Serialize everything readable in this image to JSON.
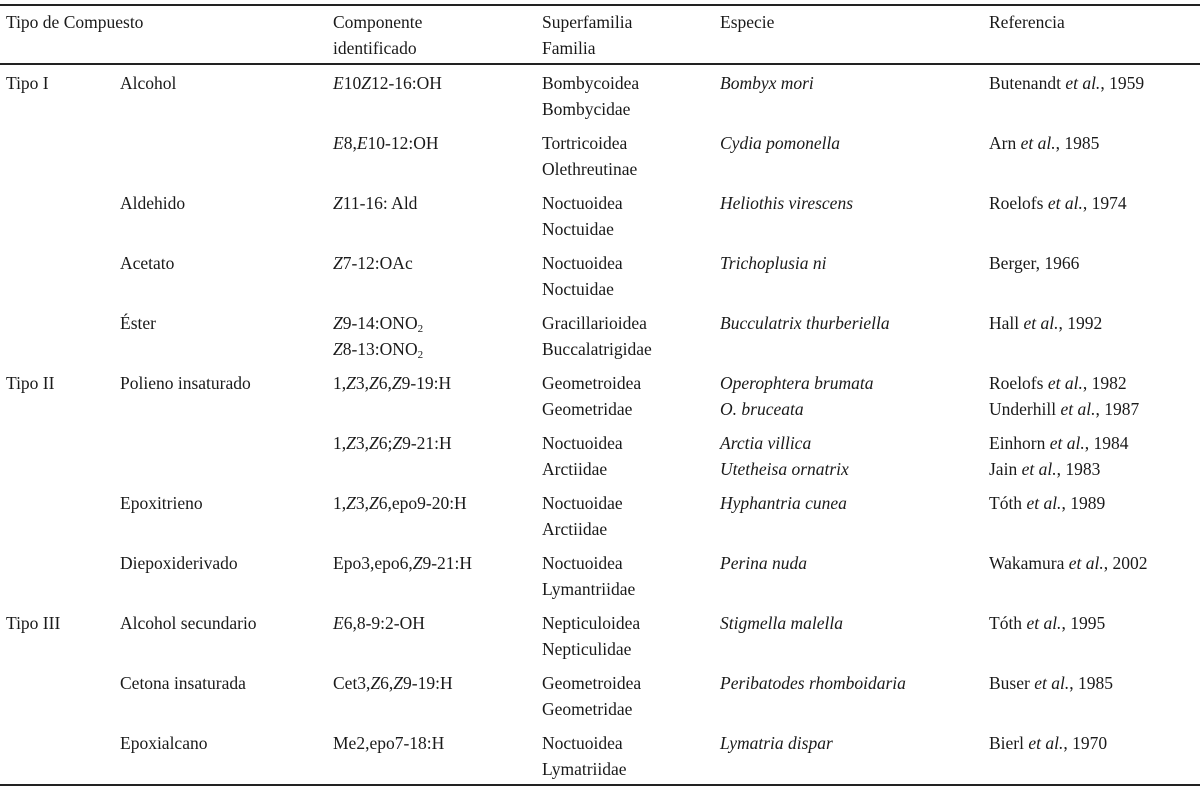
{
  "header": {
    "tipo": "Tipo de Compuesto",
    "componente": [
      "Componente",
      "identificado"
    ],
    "superfamilia": [
      "Superfamilia",
      "Familia"
    ],
    "especie": "Especie",
    "referencia": "Referencia"
  },
  "rows": [
    {
      "tipo": "Tipo I",
      "clase": "Alcohol",
      "componente": [
        [
          {
            "i": "E"
          },
          "10",
          {
            "i": "Z"
          },
          "12-16:OH"
        ]
      ],
      "familia": [
        "Bombycoidea",
        "Bombycidae"
      ],
      "especie": [
        "Bombyx mori"
      ],
      "referencia": [
        [
          "Butenandt ",
          {
            "i": "et al."
          },
          ", 1959"
        ]
      ]
    },
    {
      "tipo": "",
      "clase": "",
      "componente": [
        [
          {
            "i": "E"
          },
          "8,",
          {
            "i": "E"
          },
          "10-12:OH"
        ]
      ],
      "familia": [
        "Tortricoidea",
        "Olethreutinae"
      ],
      "especie": [
        "Cydia pomonella"
      ],
      "referencia": [
        [
          "Arn ",
          {
            "i": "et al."
          },
          ", 1985"
        ]
      ]
    },
    {
      "tipo": "",
      "clase": "Aldehido",
      "componente": [
        [
          {
            "i": "Z"
          },
          "11-16: Ald"
        ]
      ],
      "familia": [
        "Noctuoidea",
        "Noctuidae"
      ],
      "especie": [
        "Heliothis virescens"
      ],
      "referencia": [
        [
          "Roelofs ",
          {
            "i": "et al."
          },
          ", 1974"
        ]
      ]
    },
    {
      "tipo": "",
      "clase": "Acetato",
      "componente": [
        [
          {
            "i": "Z"
          },
          "7-12:OAc"
        ]
      ],
      "familia": [
        "Noctuoidea",
        "Noctuidae"
      ],
      "especie": [
        "Trichoplusia ni"
      ],
      "referencia": [
        [
          "Berger, 1966"
        ]
      ]
    },
    {
      "tipo": "",
      "clase": "Éster",
      "componente": [
        [
          {
            "i": "Z"
          },
          "9-14:ONO",
          {
            "sub": "2"
          }
        ],
        [
          {
            "i": "Z"
          },
          "8-13:ONO",
          {
            "sub": "2"
          }
        ]
      ],
      "familia": [
        "Gracillarioidea",
        "Buccalatrigidae"
      ],
      "especie": [
        "Bucculatrix thurberiella"
      ],
      "referencia": [
        [
          "Hall ",
          {
            "i": "et al."
          },
          ", 1992"
        ]
      ]
    },
    {
      "tipo": "Tipo II",
      "clase": "Polieno insaturado",
      "componente": [
        [
          "1,",
          {
            "i": "Z"
          },
          "3,",
          {
            "i": "Z"
          },
          "6,",
          {
            "i": "Z"
          },
          "9-19:H"
        ]
      ],
      "familia": [
        "Geometroidea",
        "Geometridae"
      ],
      "especie": [
        "Operophtera brumata",
        "O. bruceata"
      ],
      "referencia": [
        [
          "Roelofs ",
          {
            "i": "et al."
          },
          ", 1982"
        ],
        [
          "Underhill ",
          {
            "i": "et al."
          },
          ", 1987"
        ]
      ]
    },
    {
      "tipo": "",
      "clase": "",
      "componente": [
        [
          "1,",
          {
            "i": "Z"
          },
          "3,",
          {
            "i": "Z"
          },
          "6;",
          {
            "i": "Z"
          },
          "9-21:H"
        ]
      ],
      "familia": [
        "Noctuoidea",
        "Arctiidae"
      ],
      "especie": [
        "Arctia villica",
        "Utetheisa ornatrix"
      ],
      "referencia": [
        [
          "Einhorn ",
          {
            "i": "et al."
          },
          ", 1984"
        ],
        [
          "Jain ",
          {
            "i": "et al."
          },
          ", 1983"
        ]
      ]
    },
    {
      "tipo": "",
      "clase": "Epoxitrieno",
      "componente": [
        [
          "1,",
          {
            "i": "Z"
          },
          "3,",
          {
            "i": "Z"
          },
          "6,epo9-20:H"
        ]
      ],
      "familia": [
        "Noctuoidae",
        "Arctiidae"
      ],
      "especie": [
        "Hyphantria cunea"
      ],
      "referencia": [
        [
          "Tóth ",
          {
            "i": "et al."
          },
          ", 1989"
        ]
      ]
    },
    {
      "tipo": "",
      "clase": "Diepoxiderivado",
      "componente": [
        [
          "Epo3,epo6,",
          {
            "i": "Z"
          },
          "9-21:H"
        ]
      ],
      "familia": [
        "Noctuoidea",
        "Lymantriidae"
      ],
      "especie": [
        "Perina nuda"
      ],
      "referencia": [
        [
          "Wakamura ",
          {
            "i": "et al."
          },
          ", 2002"
        ]
      ]
    },
    {
      "tipo": "Tipo III",
      "clase": "Alcohol secundario",
      "componente": [
        [
          {
            "i": "E"
          },
          "6,8-9:2-OH"
        ]
      ],
      "familia": [
        "Nepticuloidea",
        "Nepticulidae"
      ],
      "especie": [
        "Stigmella malella"
      ],
      "referencia": [
        [
          "Tóth ",
          {
            "i": "et al."
          },
          ", 1995"
        ]
      ]
    },
    {
      "tipo": "",
      "clase": "Cetona insaturada",
      "componente": [
        [
          "Cet3,",
          {
            "i": "Z"
          },
          "6,",
          {
            "i": "Z"
          },
          "9-19:H"
        ]
      ],
      "familia": [
        "Geometroidea",
        "Geometridae"
      ],
      "especie": [
        "Peribatodes rhomboidaria"
      ],
      "referencia": [
        [
          "Buser ",
          {
            "i": "et al."
          },
          ", 1985"
        ]
      ]
    },
    {
      "tipo": "",
      "clase": "Epoxialcano",
      "componente": [
        [
          "Me2,epo7-18:H"
        ]
      ],
      "familia": [
        "Noctuoidea",
        "Lymatriidae"
      ],
      "especie": [
        "Lymatria dispar"
      ],
      "referencia": [
        [
          "Bierl ",
          {
            "i": "et al."
          },
          ", 1970"
        ]
      ]
    }
  ]
}
